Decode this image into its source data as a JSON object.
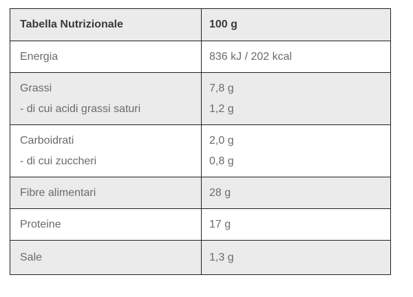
{
  "table": {
    "header": {
      "title": "Tabella Nutrizionale",
      "amount_column": "100 g"
    },
    "rows": {
      "energia": {
        "label": "Energia",
        "value": "836 kJ / 202 kcal"
      },
      "grassi": {
        "label": "Grassi",
        "value": "7,8 g",
        "sub_label": "- di cui acidi grassi saturi",
        "sub_value": "1,2 g"
      },
      "carboidrati": {
        "label": "Carboidrati",
        "value": "2,0 g",
        "sub_label": "- di cui zuccheri",
        "sub_value": "0,8 g"
      },
      "fibre": {
        "label": "Fibre alimentari",
        "value": "28 g"
      },
      "proteine": {
        "label": "Proteine",
        "value": "17 g"
      },
      "sale": {
        "label": "Sale",
        "value": "1,3 g"
      }
    },
    "colors": {
      "shaded_row_bg": "#ebebeb",
      "border": "#1f1f1f",
      "header_text": "#3a3a3a",
      "body_text": "#6a6a6a"
    }
  }
}
